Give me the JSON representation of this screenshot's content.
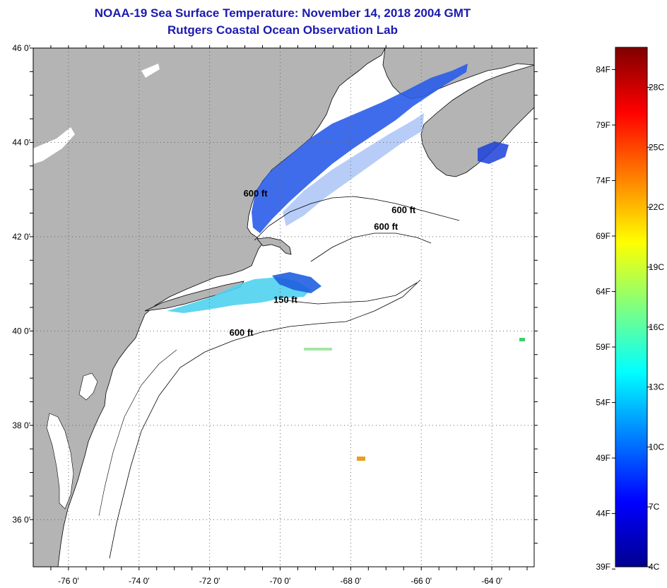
{
  "title": {
    "line1": "NOAA-19 Sea Surface Temperature:  November 14, 2018 2004 GMT",
    "line2": "Rutgers Coastal Ocean Observation Lab"
  },
  "map": {
    "lon_range": [
      -77,
      -62.8
    ],
    "lat_range": [
      35,
      46
    ],
    "lon_ticks": [
      {
        "value": -76,
        "label": "-76 0'"
      },
      {
        "value": -74,
        "label": "-74 0'"
      },
      {
        "value": -72,
        "label": "-72 0'"
      },
      {
        "value": -70,
        "label": "-70 0'"
      },
      {
        "value": -68,
        "label": "-68 0'"
      },
      {
        "value": -66,
        "label": "-66 0'"
      },
      {
        "value": -64,
        "label": "-64 0'"
      }
    ],
    "lat_ticks": [
      {
        "value": 46,
        "label": "46 0'"
      },
      {
        "value": 44,
        "label": "44 0'"
      },
      {
        "value": 42,
        "label": "42 0'"
      },
      {
        "value": 40,
        "label": "40 0'"
      },
      {
        "value": 38,
        "label": "38 0'"
      },
      {
        "value": 36,
        "label": "36 0'"
      }
    ],
    "contour_labels": [
      {
        "text": "600 ft",
        "lon": -70.7,
        "lat": 42.85
      },
      {
        "text": "600 ft",
        "lon": -66.5,
        "lat": 42.5
      },
      {
        "text": "600 ft",
        "lon": -67.0,
        "lat": 42.15
      },
      {
        "text": "150 ft",
        "lon": -69.85,
        "lat": 40.6
      },
      {
        "text": "600 ft",
        "lon": -71.1,
        "lat": 39.9
      }
    ],
    "land_color": "#b4b4b4",
    "water_color": "#ffffff"
  },
  "colorbar": {
    "min_c": 4,
    "max_c": 30,
    "fahrenheit_labels": [
      "84F",
      "79F",
      "74F",
      "69F",
      "64F",
      "59F",
      "54F",
      "49F",
      "44F",
      "39F"
    ],
    "fahrenheit_values": [
      84,
      79,
      74,
      69,
      64,
      59,
      54,
      49,
      44,
      39
    ],
    "celsius_labels": [
      "28C",
      "25C",
      "22C",
      "19C",
      "16C",
      "13C",
      "10C",
      "7C",
      "4C"
    ],
    "celsius_values": [
      28,
      25,
      22,
      19,
      16,
      13,
      10,
      7,
      4
    ]
  }
}
